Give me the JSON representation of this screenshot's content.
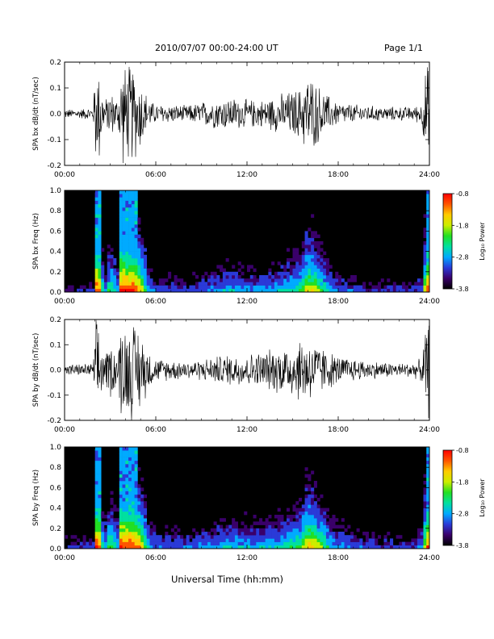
{
  "header": {
    "title": "2010/07/07  00:00-24:00 UT",
    "page": "Page 1/1"
  },
  "footer": {
    "xlabel": "Universal Time (hh:mm)"
  },
  "colorbar": {
    "label": "Log₁₀ Power",
    "ticks": [
      "-0.8",
      "-1.8",
      "-2.8",
      "-3.8"
    ],
    "colors": [
      "#000000",
      "#3a006a",
      "#2a3ad8",
      "#00aaff",
      "#00e0a0",
      "#22e022",
      "#ccee00",
      "#ffcc00",
      "#ff5500",
      "#ff0000"
    ]
  },
  "chart_data": [
    {
      "type": "line",
      "ylabel": "SPA bx dB/dt (nT/sec)",
      "ylim": [
        -0.2,
        0.2
      ],
      "yticks": [
        "0.2",
        "0.1",
        "0.0",
        "-0.1",
        "-0.2"
      ],
      "xlim": [
        "00:00",
        "24:00"
      ],
      "xticks": [
        "00:00",
        "06:00",
        "12:00",
        "18:00",
        "24:00"
      ],
      "series": [
        {
          "x_hours": [
            0,
            1,
            1.9,
            2.0,
            2.3,
            2.6,
            3.0,
            3.5,
            3.7,
            4.0,
            4.5,
            5.0,
            5.3,
            5.6,
            6,
            7,
            8,
            9,
            10,
            11,
            12,
            13,
            14,
            15,
            15.5,
            16,
            16.5,
            17,
            17.5,
            18,
            19,
            20,
            21,
            22,
            23,
            23.5,
            23.8,
            24
          ],
          "envelope_upper": [
            0.02,
            0.02,
            0.03,
            0.21,
            0.21,
            0.05,
            0.1,
            0.06,
            0.21,
            0.21,
            0.21,
            0.15,
            0.1,
            0.06,
            0.04,
            0.04,
            0.035,
            0.05,
            0.065,
            0.07,
            0.06,
            0.06,
            0.08,
            0.1,
            0.11,
            0.18,
            0.14,
            0.1,
            0.07,
            0.05,
            0.04,
            0.035,
            0.03,
            0.03,
            0.03,
            0.05,
            0.21,
            0.21
          ],
          "envelope_lower": [
            -0.02,
            -0.02,
            -0.03,
            -0.21,
            -0.21,
            -0.05,
            -0.1,
            -0.06,
            -0.21,
            -0.21,
            -0.21,
            -0.15,
            -0.1,
            -0.06,
            -0.04,
            -0.04,
            -0.035,
            -0.05,
            -0.065,
            -0.07,
            -0.06,
            -0.06,
            -0.08,
            -0.1,
            -0.11,
            -0.18,
            -0.14,
            -0.1,
            -0.07,
            -0.05,
            -0.04,
            -0.035,
            -0.03,
            -0.03,
            -0.03,
            -0.05,
            -0.21,
            -0.21
          ]
        }
      ]
    },
    {
      "type": "heatmap",
      "ylabel": "SPA bx Freq (Hz)",
      "ylim": [
        0.0,
        1.0
      ],
      "yticks": [
        "1.0",
        "0.8",
        "0.6",
        "0.4",
        "0.2",
        "0.0"
      ],
      "xlim": [
        "00:00",
        "24:00"
      ],
      "xticks": [
        "00:00",
        "06:00",
        "12:00",
        "18:00",
        "24:00"
      ],
      "zlim": [
        -3.8,
        -0.8
      ],
      "activity_hours": [
        0,
        1,
        1.9,
        2.0,
        2.3,
        2.6,
        3.0,
        3.5,
        3.7,
        4.0,
        4.5,
        5.0,
        5.3,
        5.6,
        6,
        7,
        8,
        9,
        10,
        11,
        12,
        13,
        14,
        15,
        15.5,
        16,
        16.5,
        17,
        17.5,
        18,
        19,
        20,
        21,
        22,
        23,
        23.5,
        23.8,
        24
      ],
      "activity_level": [
        0.15,
        0.15,
        0.2,
        1.0,
        0.95,
        0.3,
        0.6,
        0.4,
        1.0,
        1.0,
        1.0,
        0.8,
        0.6,
        0.35,
        0.25,
        0.25,
        0.22,
        0.3,
        0.35,
        0.4,
        0.35,
        0.35,
        0.4,
        0.5,
        0.55,
        0.8,
        0.7,
        0.55,
        0.4,
        0.3,
        0.25,
        0.2,
        0.2,
        0.2,
        0.2,
        0.3,
        0.95,
        0.95
      ]
    },
    {
      "type": "line",
      "ylabel": "SPA by dB/dt (nT/sec)",
      "ylim": [
        -0.2,
        0.2
      ],
      "yticks": [
        "0.2",
        "0.1",
        "0.0",
        "-0.1",
        "-0.2"
      ],
      "xlim": [
        "00:00",
        "24:00"
      ],
      "xticks": [
        "00:00",
        "06:00",
        "12:00",
        "18:00",
        "24:00"
      ],
      "series": [
        {
          "x_hours": [
            0,
            1,
            1.9,
            2.0,
            2.3,
            2.6,
            3.0,
            3.5,
            3.7,
            4.0,
            4.5,
            5.0,
            5.3,
            5.6,
            6,
            7,
            8,
            9,
            10,
            11,
            12,
            13,
            14,
            15,
            15.5,
            16,
            16.5,
            17,
            17.5,
            18,
            19,
            20,
            21,
            22,
            23,
            23.5,
            23.8,
            24
          ],
          "envelope_upper": [
            0.025,
            0.025,
            0.03,
            0.21,
            0.21,
            0.06,
            0.12,
            0.08,
            0.21,
            0.21,
            0.21,
            0.18,
            0.12,
            0.08,
            0.05,
            0.045,
            0.04,
            0.045,
            0.06,
            0.07,
            0.07,
            0.08,
            0.1,
            0.12,
            0.14,
            0.15,
            0.12,
            0.1,
            0.08,
            0.06,
            0.05,
            0.04,
            0.035,
            0.03,
            0.035,
            0.05,
            0.21,
            0.21
          ],
          "envelope_lower": [
            -0.025,
            -0.025,
            -0.03,
            -0.21,
            -0.21,
            -0.06,
            -0.12,
            -0.08,
            -0.21,
            -0.21,
            -0.21,
            -0.18,
            -0.12,
            -0.08,
            -0.05,
            -0.045,
            -0.04,
            -0.045,
            -0.06,
            -0.07,
            -0.07,
            -0.08,
            -0.1,
            -0.12,
            -0.14,
            -0.15,
            -0.12,
            -0.1,
            -0.08,
            -0.06,
            -0.05,
            -0.04,
            -0.035,
            -0.03,
            -0.035,
            -0.05,
            -0.21,
            -0.21
          ]
        }
      ]
    },
    {
      "type": "heatmap",
      "ylabel": "SPA by Freq (Hz)",
      "ylim": [
        0.0,
        1.0
      ],
      "yticks": [
        "1.0",
        "0.8",
        "0.6",
        "0.4",
        "0.2",
        "0.0"
      ],
      "xlim": [
        "00:00",
        "24:00"
      ],
      "xticks": [
        "00:00",
        "06:00",
        "12:00",
        "18:00",
        "24:00"
      ],
      "zlim": [
        -3.8,
        -0.8
      ],
      "activity_hours": [
        0,
        1,
        1.9,
        2.0,
        2.3,
        2.6,
        3.0,
        3.5,
        3.7,
        4.0,
        4.5,
        5.0,
        5.3,
        5.6,
        6,
        7,
        8,
        9,
        10,
        11,
        12,
        13,
        14,
        15,
        15.5,
        16,
        16.5,
        17,
        17.5,
        18,
        19,
        20,
        21,
        22,
        23,
        23.5,
        23.8,
        24
      ],
      "activity_level": [
        0.2,
        0.2,
        0.25,
        1.0,
        0.95,
        0.35,
        0.65,
        0.45,
        1.0,
        1.0,
        1.0,
        0.85,
        0.65,
        0.4,
        0.3,
        0.3,
        0.28,
        0.32,
        0.38,
        0.42,
        0.4,
        0.4,
        0.45,
        0.55,
        0.6,
        0.85,
        0.75,
        0.6,
        0.45,
        0.35,
        0.3,
        0.25,
        0.22,
        0.22,
        0.22,
        0.35,
        0.95,
        0.95
      ]
    }
  ]
}
